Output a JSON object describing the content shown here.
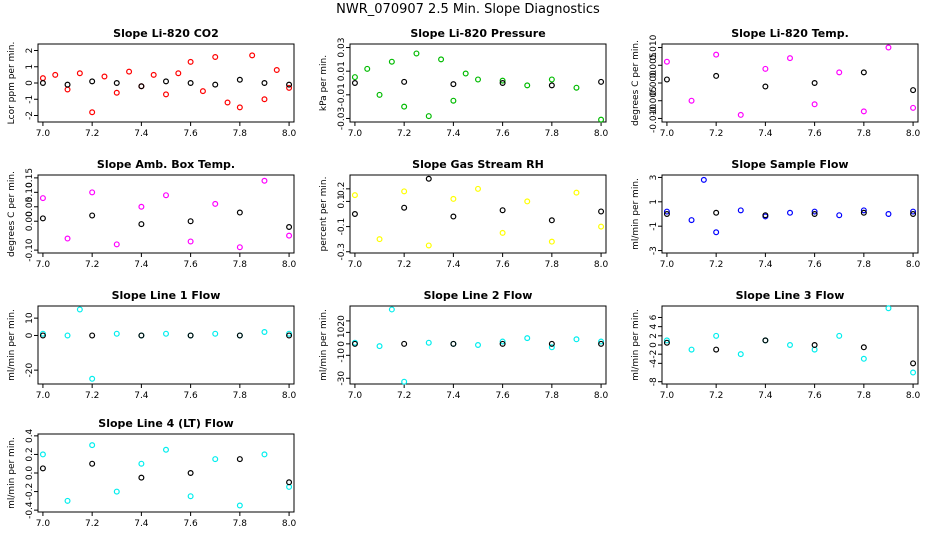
{
  "page": {
    "title": "NWR_070907  2.5 Min. Slope Diagnostics"
  },
  "colors": {
    "red": "#ff0000",
    "green": "#00bb00",
    "magenta": "#ff00ff",
    "yellow": "#ffff00",
    "blue": "#0000ff",
    "cyan": "#00eeee",
    "black": "#000000"
  },
  "chart_data": [
    {
      "type": "scatter",
      "title": "Slope Li-820 CO2",
      "ylabel": "Lcor ppm per min.",
      "xlim": [
        6.98,
        8.02
      ],
      "ylim": [
        -2.4,
        2.4
      ],
      "xticks": [
        "7.0",
        "7.2",
        "7.4",
        "7.6",
        "7.8",
        "8.0"
      ],
      "yticks": [
        "-2",
        "-1",
        "0",
        "1",
        "2"
      ],
      "color": "#ff0000",
      "series": [
        {
          "color_key": "red",
          "x": [
            7.0,
            7.05,
            7.1,
            7.15,
            7.2,
            7.25,
            7.3,
            7.35,
            7.4,
            7.45,
            7.5,
            7.55,
            7.6,
            7.65,
            7.7,
            7.75,
            7.8,
            7.85,
            7.9,
            7.95,
            8.0
          ],
          "y": [
            0.3,
            0.5,
            -0.4,
            0.6,
            -1.8,
            0.4,
            -0.6,
            0.7,
            -0.2,
            0.5,
            -0.7,
            0.6,
            1.3,
            -0.5,
            1.6,
            -1.2,
            -1.5,
            1.7,
            -1.0,
            0.8,
            -0.3
          ]
        },
        {
          "color_key": "black",
          "x": [
            7.0,
            7.1,
            7.2,
            7.3,
            7.4,
            7.5,
            7.6,
            7.7,
            7.8,
            7.9,
            8.0
          ],
          "y": [
            0.0,
            -0.1,
            0.1,
            0.0,
            -0.2,
            0.1,
            0.0,
            -0.1,
            0.2,
            0.0,
            -0.1
          ]
        }
      ]
    },
    {
      "type": "scatter",
      "title": "Slope Li-820 Pressure",
      "ylabel": "kPa per min.",
      "xlim": [
        6.98,
        8.02
      ],
      "ylim": [
        -0.033,
        0.033
      ],
      "xticks": [
        "7.0",
        "7.2",
        "7.4",
        "7.6",
        "7.8",
        "8.0"
      ],
      "yticks": [
        "-0.03",
        "-0.01",
        "0.01",
        "0.03"
      ],
      "color": "#00bb00",
      "series": [
        {
          "color_key": "green",
          "x": [
            7.0,
            7.05,
            7.1,
            7.15,
            7.2,
            7.25,
            7.3,
            7.35,
            7.4,
            7.45,
            7.5,
            7.6,
            7.7,
            7.8,
            7.9,
            8.0
          ],
          "y": [
            0.005,
            0.012,
            -0.01,
            0.018,
            -0.02,
            0.025,
            -0.028,
            0.02,
            -0.015,
            0.008,
            0.003,
            0.002,
            -0.002,
            0.003,
            -0.004,
            -0.031
          ]
        },
        {
          "color_key": "black",
          "x": [
            7.0,
            7.2,
            7.4,
            7.6,
            7.8,
            8.0
          ],
          "y": [
            0.0,
            0.001,
            -0.001,
            0.0,
            -0.002,
            0.001
          ]
        }
      ]
    },
    {
      "type": "scatter",
      "title": "Slope Li-820 Temp.",
      "ylabel": "degrees C per min.",
      "xlim": [
        6.98,
        8.02
      ],
      "ylim": [
        -0.011,
        0.011
      ],
      "xticks": [
        "7.0",
        "7.2",
        "7.4",
        "7.6",
        "7.8",
        "8.0"
      ],
      "yticks": [
        "-0.010",
        "-0.005",
        "0.000",
        "0.005",
        "0.010"
      ],
      "color": "#ff00ff",
      "series": [
        {
          "color_key": "magenta",
          "x": [
            7.0,
            7.1,
            7.2,
            7.3,
            7.4,
            7.5,
            7.6,
            7.7,
            7.8,
            7.9,
            8.0
          ],
          "y": [
            0.006,
            -0.005,
            0.008,
            -0.009,
            0.004,
            0.007,
            -0.006,
            0.003,
            -0.008,
            0.01,
            -0.007
          ]
        },
        {
          "color_key": "black",
          "x": [
            7.0,
            7.2,
            7.4,
            7.6,
            7.8,
            8.0
          ],
          "y": [
            0.001,
            0.002,
            -0.001,
            0.0,
            0.003,
            -0.002
          ]
        }
      ]
    },
    {
      "type": "scatter",
      "title": "Slope Amb. Box Temp.",
      "ylabel": "degrees C per min.",
      "xlim": [
        6.98,
        8.02
      ],
      "ylim": [
        -0.11,
        0.16
      ],
      "xticks": [
        "7.0",
        "7.2",
        "7.4",
        "7.6",
        "7.8",
        "8.0"
      ],
      "yticks": [
        "-0.10",
        "0.00",
        "0.05",
        "0.10",
        "0.15"
      ],
      "color": "#ff00ff",
      "series": [
        {
          "color_key": "magenta",
          "x": [
            7.0,
            7.1,
            7.2,
            7.3,
            7.4,
            7.5,
            7.6,
            7.7,
            7.8,
            7.9,
            8.0
          ],
          "y": [
            0.08,
            -0.06,
            0.1,
            -0.08,
            0.05,
            0.09,
            -0.07,
            0.06,
            -0.09,
            0.14,
            -0.05
          ]
        },
        {
          "color_key": "black",
          "x": [
            7.0,
            7.2,
            7.4,
            7.6,
            7.8,
            8.0
          ],
          "y": [
            0.01,
            0.02,
            -0.01,
            0.0,
            0.03,
            -0.02
          ]
        }
      ]
    },
    {
      "type": "scatter",
      "title": "Slope Gas Stream RH",
      "ylabel": "percent per min.",
      "xlim": [
        6.98,
        8.02
      ],
      "ylim": [
        -0.31,
        0.31
      ],
      "xticks": [
        "7.0",
        "7.2",
        "7.4",
        "7.6",
        "7.8",
        "8.0"
      ],
      "yticks": [
        "-0.3",
        "-0.1",
        "0.1",
        "0.2"
      ],
      "color": "#ffff00",
      "series": [
        {
          "color_key": "yellow",
          "x": [
            7.0,
            7.1,
            7.2,
            7.3,
            7.4,
            7.5,
            7.6,
            7.7,
            7.8,
            7.9,
            8.0
          ],
          "y": [
            0.15,
            -0.2,
            0.18,
            -0.25,
            0.12,
            0.2,
            -0.15,
            0.1,
            -0.22,
            0.17,
            -0.1
          ]
        },
        {
          "color_key": "black",
          "x": [
            7.0,
            7.2,
            7.3,
            7.4,
            7.6,
            7.8,
            8.0
          ],
          "y": [
            0.0,
            0.05,
            0.28,
            -0.02,
            0.03,
            -0.05,
            0.02
          ]
        }
      ]
    },
    {
      "type": "scatter",
      "title": "Slope Sample Flow",
      "ylabel": "ml/min per min.",
      "xlim": [
        6.98,
        8.02
      ],
      "ylim": [
        -3.2,
        3.2
      ],
      "xticks": [
        "7.0",
        "7.2",
        "7.4",
        "7.6",
        "7.8",
        "8.0"
      ],
      "yticks": [
        "-3",
        "-1",
        "1",
        "3"
      ],
      "color": "#0000ff",
      "series": [
        {
          "color_key": "blue",
          "x": [
            7.0,
            7.1,
            7.15,
            7.2,
            7.3,
            7.4,
            7.5,
            7.6,
            7.7,
            7.8,
            7.9,
            8.0
          ],
          "y": [
            0.2,
            -0.5,
            2.8,
            -1.5,
            0.3,
            -0.2,
            0.1,
            0.2,
            -0.1,
            0.3,
            0.0,
            0.2
          ]
        },
        {
          "color_key": "black",
          "x": [
            7.0,
            7.2,
            7.4,
            7.6,
            7.8,
            8.0
          ],
          "y": [
            0.0,
            0.1,
            -0.1,
            0.0,
            0.1,
            0.0
          ]
        }
      ]
    },
    {
      "type": "scatter",
      "title": "Slope Line 1 Flow",
      "ylabel": "ml/min per min.",
      "xlim": [
        6.98,
        8.02
      ],
      "ylim": [
        -28,
        17
      ],
      "xticks": [
        "7.0",
        "7.2",
        "7.4",
        "7.6",
        "7.8",
        "8.0"
      ],
      "yticks": [
        "-20",
        "0",
        "10"
      ],
      "color": "#00eeee",
      "series": [
        {
          "color_key": "cyan",
          "x": [
            7.0,
            7.1,
            7.15,
            7.2,
            7.3,
            7.4,
            7.5,
            7.6,
            7.7,
            7.8,
            7.9,
            8.0
          ],
          "y": [
            1,
            0,
            15,
            -25,
            1,
            0,
            1,
            0,
            1,
            0,
            2,
            1
          ]
        },
        {
          "color_key": "black",
          "x": [
            7.0,
            7.2,
            7.4,
            7.6,
            7.8,
            8.0
          ],
          "y": [
            0,
            0,
            0,
            0,
            0,
            0
          ]
        }
      ]
    },
    {
      "type": "scatter",
      "title": "Slope Line 2 Flow",
      "ylabel": "ml/min per min.",
      "xlim": [
        6.98,
        8.02
      ],
      "ylim": [
        -35,
        33
      ],
      "xticks": [
        "7.0",
        "7.2",
        "7.4",
        "7.6",
        "7.8",
        "8.0"
      ],
      "yticks": [
        "-30",
        "-10",
        "0",
        "10",
        "20"
      ],
      "color": "#00eeee",
      "series": [
        {
          "color_key": "cyan",
          "x": [
            7.0,
            7.1,
            7.15,
            7.2,
            7.3,
            7.4,
            7.5,
            7.6,
            7.7,
            7.8,
            7.9,
            8.0
          ],
          "y": [
            1,
            -2,
            30,
            -33,
            1,
            0,
            -1,
            2,
            5,
            -3,
            4,
            2
          ]
        },
        {
          "color_key": "black",
          "x": [
            7.0,
            7.2,
            7.4,
            7.6,
            7.8,
            8.0
          ],
          "y": [
            0,
            0,
            0,
            0,
            0,
            0
          ]
        }
      ]
    },
    {
      "type": "scatter",
      "title": "Slope Line 3 Flow",
      "ylabel": "ml/min per min.",
      "xlim": [
        6.98,
        8.02
      ],
      "ylim": [
        -8.5,
        8.5
      ],
      "xticks": [
        "7.0",
        "7.2",
        "7.4",
        "7.6",
        "7.8",
        "8.0"
      ],
      "yticks": [
        "-8",
        "-4",
        "-2",
        "0",
        "2",
        "4",
        "6"
      ],
      "color": "#00eeee",
      "series": [
        {
          "color_key": "cyan",
          "x": [
            7.0,
            7.1,
            7.2,
            7.3,
            7.4,
            7.5,
            7.6,
            7.7,
            7.8,
            7.9,
            8.0
          ],
          "y": [
            1,
            -1,
            2,
            -2,
            1,
            0,
            -1,
            2,
            -3,
            8,
            -6
          ]
        },
        {
          "color_key": "black",
          "x": [
            7.0,
            7.2,
            7.4,
            7.6,
            7.8,
            8.0
          ],
          "y": [
            0.5,
            -1,
            1,
            0,
            -0.5,
            -4
          ]
        }
      ]
    },
    {
      "type": "scatter",
      "title": "Slope Line 4 (LT) Flow",
      "ylabel": "ml/min per min.",
      "xlim": [
        6.98,
        8.02
      ],
      "ylim": [
        -0.42,
        0.42
      ],
      "xticks": [
        "7.0",
        "7.2",
        "7.4",
        "7.6",
        "7.8",
        "8.0"
      ],
      "yticks": [
        "-0.4",
        "-0.2",
        "0.0",
        "0.2",
        "0.4"
      ],
      "color": "#00eeee",
      "series": [
        {
          "color_key": "cyan",
          "x": [
            7.0,
            7.1,
            7.2,
            7.3,
            7.4,
            7.5,
            7.6,
            7.7,
            7.8,
            7.9,
            8.0
          ],
          "y": [
            0.2,
            -0.3,
            0.3,
            -0.2,
            0.1,
            0.25,
            -0.25,
            0.15,
            -0.35,
            0.2,
            -0.15
          ]
        },
        {
          "color_key": "black",
          "x": [
            7.0,
            7.2,
            7.4,
            7.6,
            7.8,
            8.0
          ],
          "y": [
            0.05,
            0.1,
            -0.05,
            0.0,
            0.15,
            -0.1
          ]
        }
      ]
    }
  ]
}
